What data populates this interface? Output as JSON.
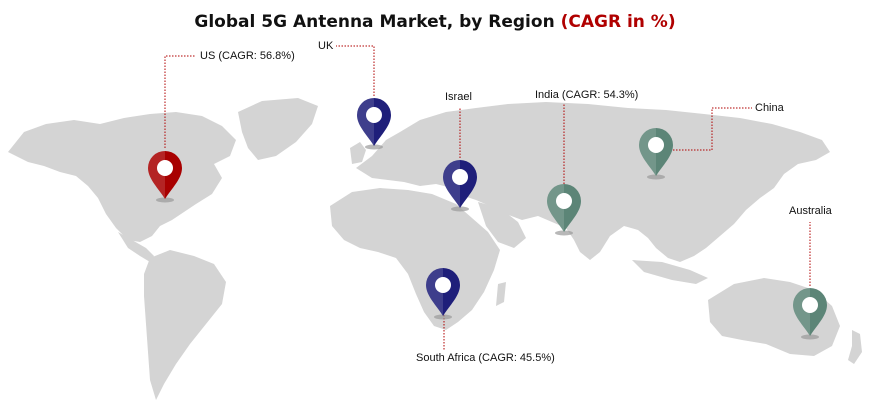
{
  "title": {
    "main": "Global 5G Antenna Market, by Region",
    "accent": "(CAGR in %)",
    "accent_color": "#b00000"
  },
  "map": {
    "land_color": "#d4d4d4",
    "leader_line_color": "#b00000"
  },
  "markers": [
    {
      "key": "us",
      "label": "US (CAGR: 56.8%)",
      "color": "#a80000",
      "icon": "map-pin-icon"
    },
    {
      "key": "uk",
      "label": "UK",
      "color": "#1f1f7a",
      "icon": "map-pin-icon"
    },
    {
      "key": "israel",
      "label": "Israel",
      "color": "#1f1f7a",
      "icon": "map-pin-icon"
    },
    {
      "key": "india",
      "label": "India (CAGR: 54.3%)",
      "color": "#5c8577",
      "icon": "map-pin-icon"
    },
    {
      "key": "china",
      "label": "China",
      "color": "#5c8577",
      "icon": "map-pin-icon"
    },
    {
      "key": "australia",
      "label": "Australia",
      "color": "#5c8577",
      "icon": "map-pin-icon"
    },
    {
      "key": "south_africa",
      "label": "South Africa (CAGR: 45.5%)",
      "color": "#1f1f7a",
      "icon": "map-pin-icon"
    }
  ]
}
